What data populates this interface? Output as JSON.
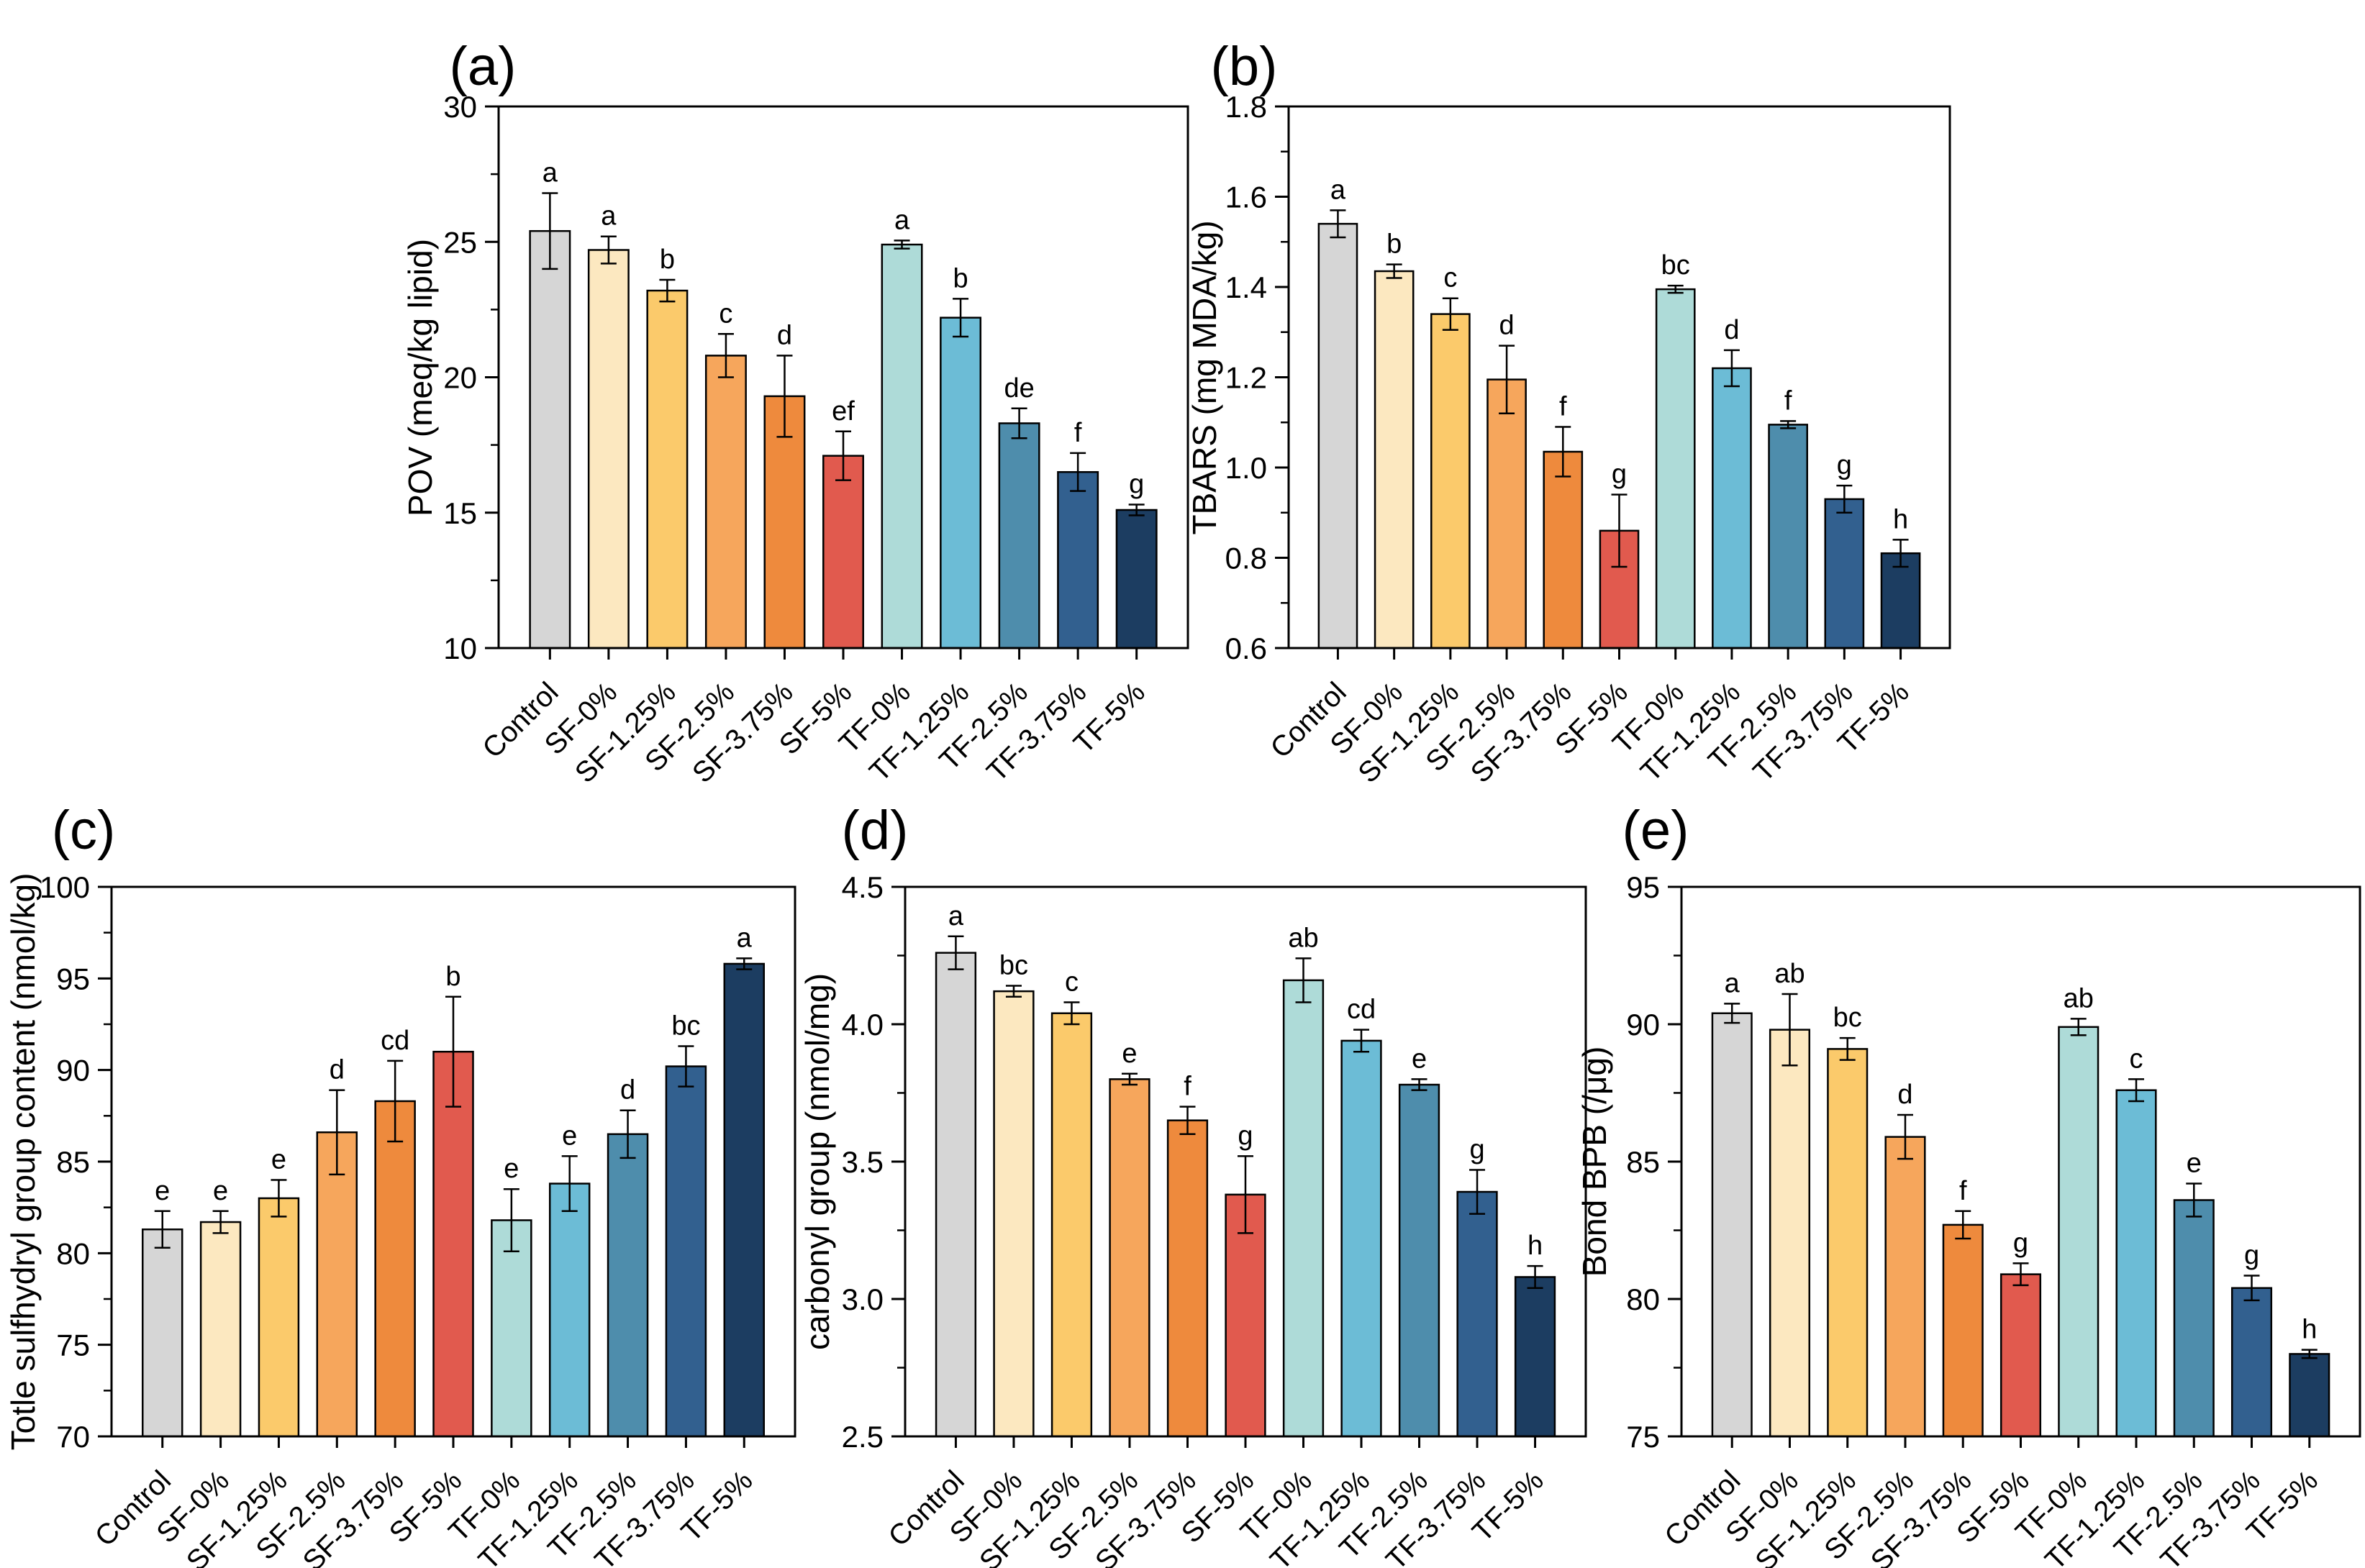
{
  "palette": {
    "background": "#ffffff",
    "axis_color": "#000000",
    "bar_stroke": "#000000",
    "bar_fill": [
      "#d6d6d6",
      "#fce8c0",
      "#fbca6b",
      "#f6a65c",
      "#ee8a3d",
      "#e15a4e",
      "#aedbd8",
      "#6cbcd6",
      "#4e8dac",
      "#32608f",
      "#1c3d61"
    ]
  },
  "categories": [
    "Control",
    "SF-0%",
    "SF-1.25%",
    "SF-2.5%",
    "SF-3.75%",
    "SF-5%",
    "TF-0%",
    "TF-1.25%",
    "TF-2.5%",
    "TF-3.75%",
    "TF-5%"
  ],
  "chart_data": [
    {
      "type": "bar",
      "panel": "(a)",
      "ylabel": "POV (meq/kg lipid)",
      "ylim": [
        10,
        30
      ],
      "ytick_step": 5,
      "minor_ticks": true,
      "tick_decimals": 0,
      "grid": false,
      "legend_position": "none",
      "categories": [
        "Control",
        "SF-0%",
        "SF-1.25%",
        "SF-2.5%",
        "SF-3.75%",
        "SF-5%",
        "TF-0%",
        "TF-1.25%",
        "TF-2.5%",
        "TF-3.75%",
        "TF-5%"
      ],
      "values": [
        25.4,
        24.7,
        23.2,
        20.8,
        19.3,
        17.1,
        24.9,
        22.2,
        18.3,
        16.5,
        15.1
      ],
      "errors": [
        1.4,
        0.5,
        0.4,
        0.8,
        1.5,
        0.9,
        0.15,
        0.7,
        0.55,
        0.7,
        0.2
      ],
      "sig_letters": [
        "a",
        "a",
        "b",
        "c",
        "d",
        "ef",
        "a",
        "b",
        "de",
        "f",
        "g"
      ]
    },
    {
      "type": "bar",
      "panel": "(b)",
      "ylabel": "TBARS (mg MDA/kg)",
      "ylim": [
        0.6,
        1.8
      ],
      "ytick_step": 0.2,
      "minor_ticks": true,
      "tick_decimals": 1,
      "grid": false,
      "legend_position": "none",
      "categories": [
        "Control",
        "SF-0%",
        "SF-1.25%",
        "SF-2.5%",
        "SF-3.75%",
        "SF-5%",
        "TF-0%",
        "TF-1.25%",
        "TF-2.5%",
        "TF-3.75%",
        "TF-5%"
      ],
      "values": [
        1.54,
        1.435,
        1.34,
        1.195,
        1.035,
        0.86,
        1.395,
        1.22,
        1.095,
        0.93,
        0.81
      ],
      "errors": [
        0.03,
        0.015,
        0.035,
        0.075,
        0.055,
        0.08,
        0.008,
        0.04,
        0.008,
        0.03,
        0.03
      ],
      "sig_letters": [
        "a",
        "b",
        "c",
        "d",
        "f",
        "g",
        "bc",
        "d",
        "f",
        "g",
        "h"
      ]
    },
    {
      "type": "bar",
      "panel": "(c)",
      "ylabel": "Totle sulfhydryl group content (nmol/kg)",
      "ylim": [
        70,
        100
      ],
      "ytick_step": 5,
      "minor_ticks": true,
      "tick_decimals": 0,
      "grid": false,
      "legend_position": "none",
      "categories": [
        "Control",
        "SF-0%",
        "SF-1.25%",
        "SF-2.5%",
        "SF-3.75%",
        "SF-5%",
        "TF-0%",
        "TF-1.25%",
        "TF-2.5%",
        "TF-3.75%",
        "TF-5%"
      ],
      "values": [
        81.3,
        81.7,
        83.0,
        86.6,
        88.3,
        91.0,
        81.8,
        83.8,
        86.5,
        90.2,
        95.8
      ],
      "errors": [
        1.0,
        0.6,
        1.0,
        2.3,
        2.2,
        3.0,
        1.7,
        1.5,
        1.3,
        1.1,
        0.3
      ],
      "sig_letters": [
        "e",
        "e",
        "e",
        "d",
        "cd",
        "b",
        "e",
        "e",
        "d",
        "bc",
        "a"
      ]
    },
    {
      "type": "bar",
      "panel": "(d)",
      "ylabel": "carbonyl group (nmol/mg)",
      "ylim": [
        2.5,
        4.5
      ],
      "ytick_step": 0.5,
      "minor_ticks": true,
      "tick_decimals": 1,
      "grid": false,
      "legend_position": "none",
      "categories": [
        "Control",
        "SF-0%",
        "SF-1.25%",
        "SF-2.5%",
        "SF-3.75%",
        "SF-5%",
        "TF-0%",
        "TF-1.25%",
        "TF-2.5%",
        "TF-3.75%",
        "TF-5%"
      ],
      "values": [
        4.26,
        4.12,
        4.04,
        3.8,
        3.65,
        3.38,
        4.16,
        3.94,
        3.78,
        3.39,
        3.08
      ],
      "errors": [
        0.06,
        0.02,
        0.04,
        0.02,
        0.05,
        0.14,
        0.08,
        0.04,
        0.02,
        0.08,
        0.04
      ],
      "sig_letters": [
        "a",
        "bc",
        "c",
        "e",
        "f",
        "g",
        "ab",
        "cd",
        "e",
        "g",
        "h"
      ]
    },
    {
      "type": "bar",
      "panel": "(e)",
      "ylabel": "Bond BPB (/μg)",
      "ylim": [
        75,
        95
      ],
      "ytick_step": 5,
      "minor_ticks": true,
      "tick_decimals": 0,
      "grid": false,
      "legend_position": "none",
      "categories": [
        "Control",
        "SF-0%",
        "SF-1.25%",
        "SF-2.5%",
        "SF-3.75%",
        "SF-5%",
        "TF-0%",
        "TF-1.25%",
        "TF-2.5%",
        "TF-3.75%",
        "TF-5%"
      ],
      "values": [
        90.4,
        89.8,
        89.1,
        85.9,
        82.7,
        80.9,
        89.9,
        87.6,
        83.6,
        80.4,
        78.0
      ],
      "errors": [
        0.35,
        1.3,
        0.4,
        0.8,
        0.5,
        0.4,
        0.3,
        0.4,
        0.6,
        0.45,
        0.15
      ],
      "sig_letters": [
        "a",
        "ab",
        "bc",
        "d",
        "f",
        "g",
        "ab",
        "c",
        "e",
        "g",
        "h"
      ]
    }
  ]
}
